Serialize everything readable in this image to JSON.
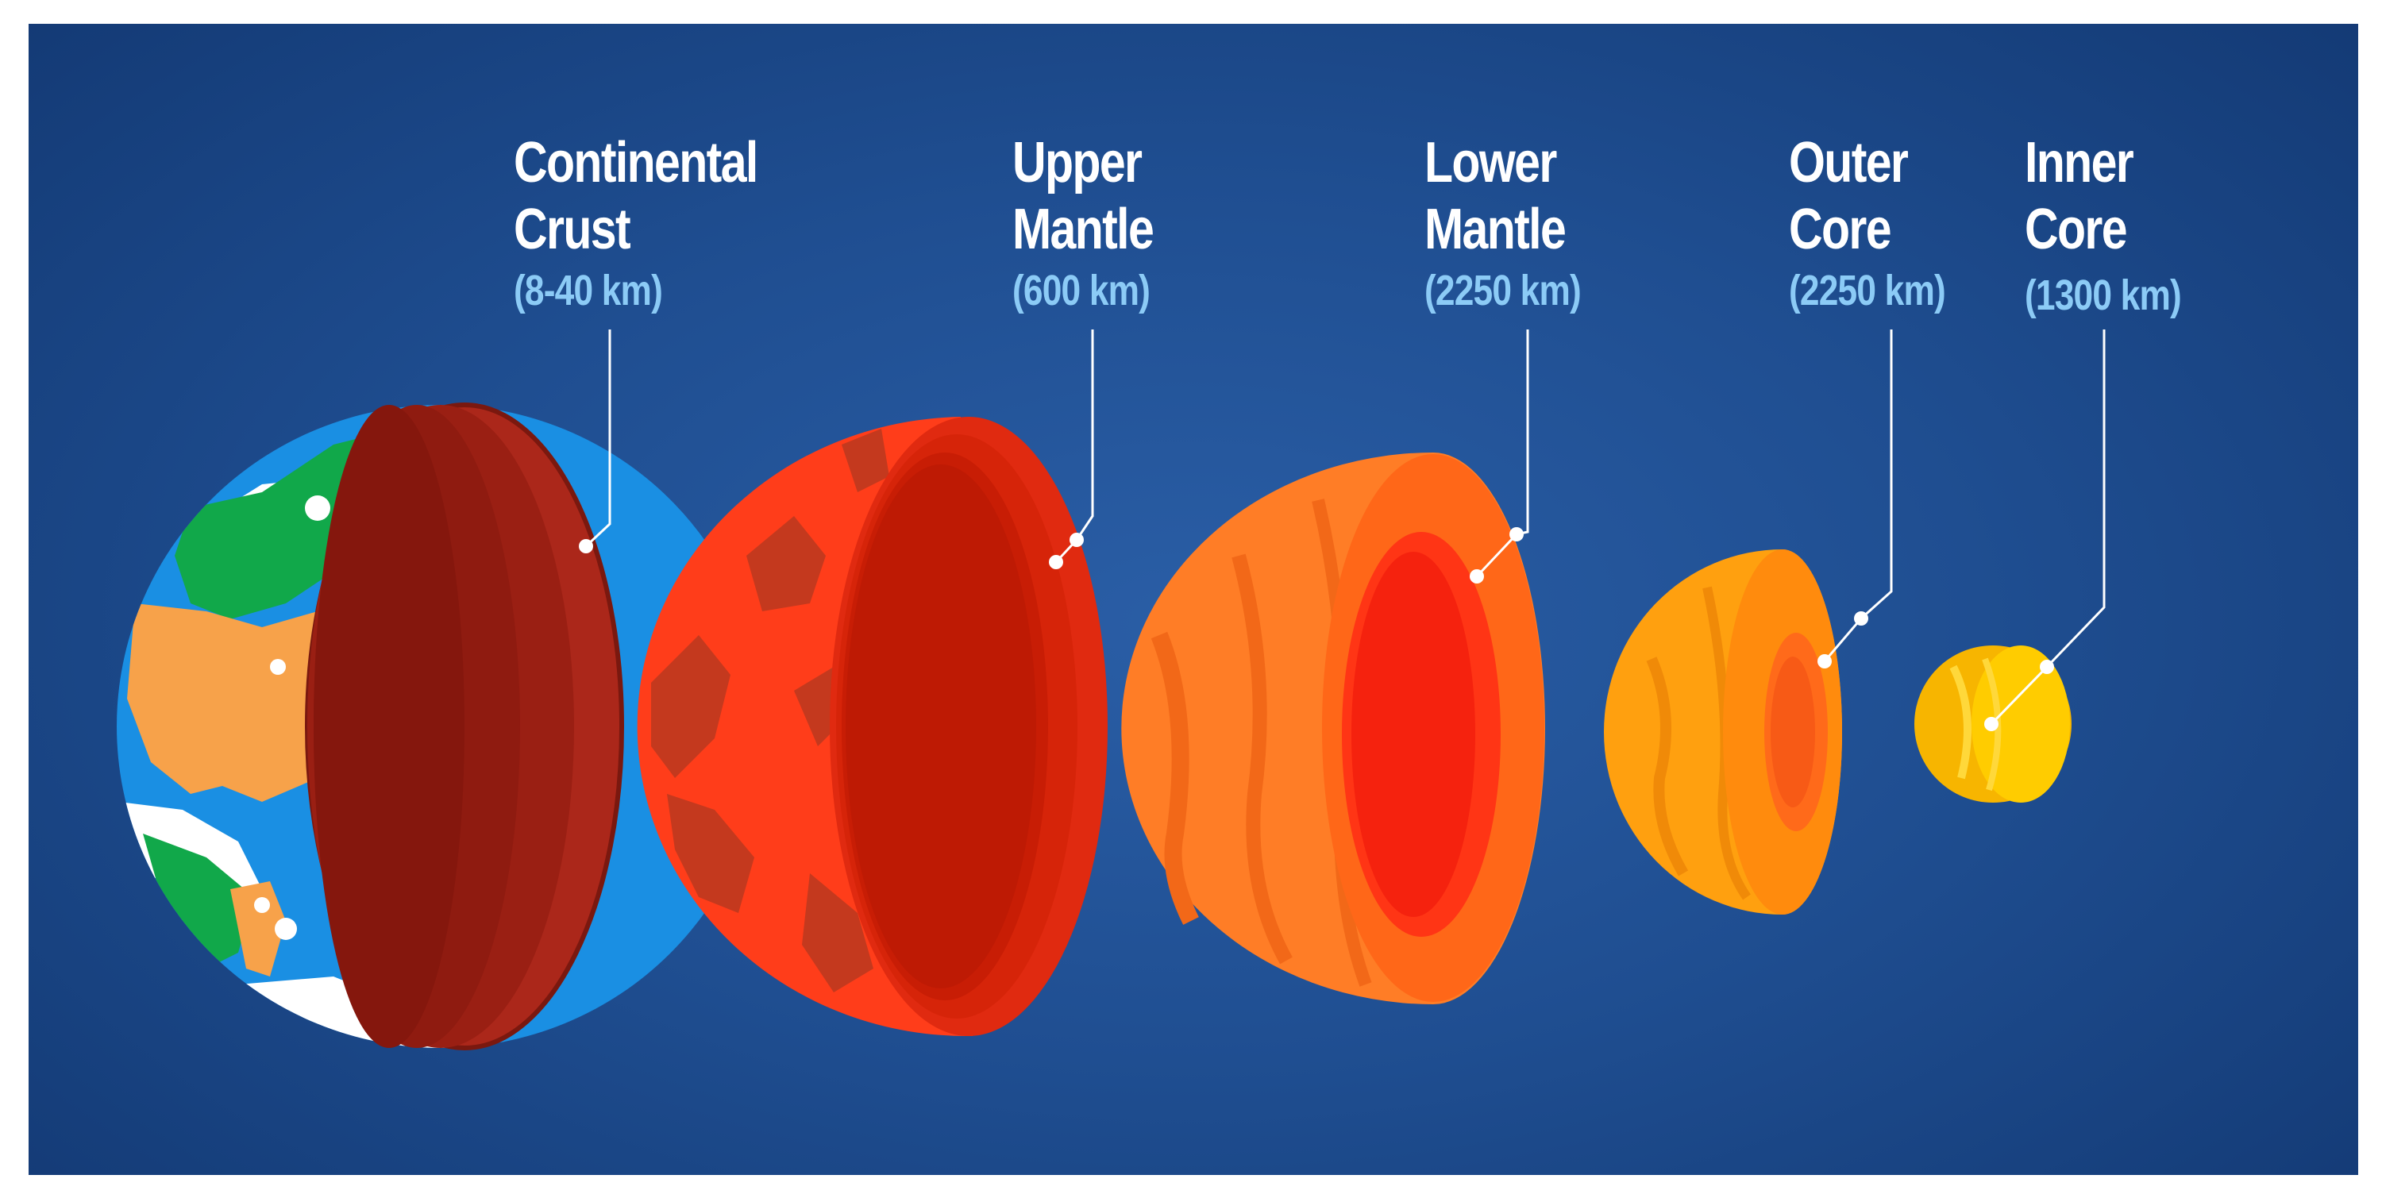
{
  "layers": [
    {
      "name": "Continental\nCrust",
      "depth": "(8-40 km)"
    },
    {
      "name": "Upper\nMantle",
      "depth": "(600 km)"
    },
    {
      "name": "Lower\nMantle",
      "depth": "(2250 km)"
    },
    {
      "name": "Outer\nCore",
      "depth": "(2250 km)"
    },
    {
      "name": "Inner\nCore",
      "depth": "(1300 km)"
    }
  ],
  "colors": {
    "background": "#1f4e91",
    "label_text": "#ffffff",
    "depth_text": "#8ccbf6",
    "crust_cut": "#a32314",
    "upper_mantle": "#ff3d1a",
    "lower_mantle": "#ff7a24",
    "outer_core": "#ff9e0f",
    "inner_core": "#ffcc00"
  }
}
